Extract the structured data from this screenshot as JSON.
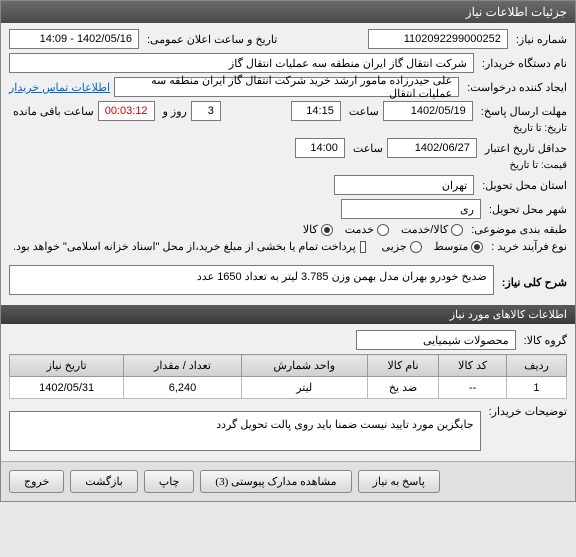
{
  "window": {
    "title": "جزئیات اطلاعات نیاز"
  },
  "labels": {
    "need_no": "شماره نیاز:",
    "ann_date": "تاریخ و ساعت اعلان عمومی:",
    "buyer_org": "نام دستگاه خریدار:",
    "req_creator": "ایجاد کننده درخواست:",
    "contact_link": "اطلاعات تماس خریدار",
    "deadline": "مهلت ارسال پاسخ:",
    "to_date": "تاریخ: تا تاریخ",
    "time_lbl": "ساعت",
    "day_and": "روز و",
    "remain": "ساعت باقی مانده",
    "min_valid": "حداقل تاریخ اعتبار",
    "price_to": "قیمت: تا تاریخ",
    "deliver_prov": "استان محل تحویل:",
    "deliver_city": "شهر محل تحویل:",
    "class_cat": "طبقه بندی موضوعی:",
    "buy_proc": "نوع فرآیند خرید :",
    "pay_note": "پرداخت تمام یا بخشی از مبلغ خرید،از محل \"اسناد خزانه اسلامی\" خواهد بود.",
    "need_title": "شرح کلی نیاز:",
    "goods_info": "اطلاعات کالاهای مورد نیاز",
    "goods_group": "گروه کالا:",
    "buyer_note": "توضیحات خریدار:"
  },
  "fields": {
    "need_no": "1102092299000252",
    "ann_date": "1402/05/16 - 14:09",
    "buyer_org": "شرکت انتقال گاز ایران منطقه سه عملیات انتقال گاز",
    "req_creator": "علی حیدرزاده مامور ارشد خرید شرکت انتقال گاز ایران منطقه سه عملیات انتقال",
    "deadline_date": "1402/05/19",
    "deadline_time": "14:15",
    "days_remain": "3",
    "countdown": "00:03:12",
    "valid_date": "1402/06/27",
    "valid_time": "14:00",
    "province": "تهران",
    "city": "ری",
    "need_title": "ضدیخ خودرو بهران مدل بهمن وزن 3.785 لیتر به تعداد 1650 عدد",
    "goods_group": "محصولات شیمیایی",
    "buyer_note": "جایگزین مورد تایید نیست ضمنا باید روی پالت تحویل گردد"
  },
  "radios": {
    "class": [
      {
        "label": "کالا/خدمت",
        "checked": false
      },
      {
        "label": "خدمت",
        "checked": false
      },
      {
        "label": "کالا",
        "checked": true
      }
    ],
    "proc": [
      {
        "label": "متوسط",
        "checked": true
      },
      {
        "label": "جزیی",
        "checked": false
      }
    ]
  },
  "table": {
    "cols": [
      "ردیف",
      "کد کالا",
      "نام کالا",
      "واحد شمارش",
      "تعداد / مقدار",
      "تاریخ نیاز"
    ],
    "rows": [
      [
        "1",
        "--",
        "ضد یخ",
        "لیتر",
        "6,240",
        "1402/05/31"
      ]
    ]
  },
  "buttons": {
    "reply": "پاسخ به نیاز",
    "attach": "مشاهده مدارک پیوستی (3)",
    "print": "چاپ",
    "back": "بازگشت",
    "exit": "خروج"
  }
}
